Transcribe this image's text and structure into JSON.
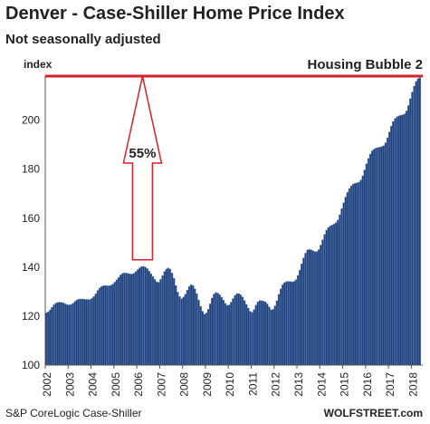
{
  "title": "Denver  - Case-Shiller Home Price Index",
  "subtitle": "Not seasonally adjusted",
  "source": "S&P CoreLogic Case-Shiller",
  "brand": "WOLFSTREET.com",
  "colors": {
    "bar": "#1f3f7a",
    "bar_edge": "#5d7fb8",
    "bubble_line": "#d3222a",
    "annotation": "#d3222a"
  },
  "chart_data": {
    "type": "bar",
    "ylabel": "index",
    "ylim": [
      100,
      218
    ],
    "yticks": [
      100,
      120,
      140,
      160,
      180,
      200
    ],
    "grid": false,
    "x_start": "2002-01",
    "year_labels": [
      "2002",
      "2003",
      "2004",
      "2005",
      "2006",
      "2007",
      "2008",
      "2009",
      "2010",
      "2011",
      "2012",
      "2013",
      "2014",
      "2015",
      "2016",
      "2017",
      "2018"
    ],
    "annotations": {
      "reference_line": {
        "value": 218,
        "label": "Housing Bubble 2"
      },
      "arrow": {
        "from": 143,
        "to": 218,
        "label": "55%"
      }
    },
    "values": [
      121.4,
      121.7,
      122.5,
      123.6,
      124.6,
      125.3,
      125.6,
      125.7,
      125.6,
      125.4,
      125.0,
      124.7,
      124.6,
      124.7,
      125.2,
      126.0,
      126.6,
      126.9,
      127.0,
      127.0,
      126.9,
      126.8,
      126.8,
      126.8,
      127.3,
      128.0,
      129.1,
      130.5,
      131.5,
      132.1,
      132.4,
      132.5,
      132.4,
      132.4,
      132.6,
      133.1,
      133.9,
      134.9,
      135.8,
      136.8,
      137.4,
      137.6,
      137.6,
      137.4,
      137.2,
      137.2,
      137.5,
      138.2,
      139.0,
      139.7,
      140.2,
      140.3,
      140.0,
      139.4,
      138.4,
      137.3,
      136.2,
      135.0,
      134.0,
      133.8,
      135.0,
      136.5,
      138.2,
      139.2,
      139.7,
      139.2,
      137.6,
      135.5,
      132.5,
      129.8,
      128.0,
      127.1,
      127.8,
      128.9,
      130.6,
      132.1,
      132.8,
      132.5,
      131.2,
      129.2,
      126.6,
      124.0,
      122.0,
      120.8,
      121.3,
      122.8,
      125.0,
      127.4,
      129.0,
      129.7,
      129.4,
      128.7,
      127.7,
      126.5,
      125.2,
      124.4,
      124.6,
      125.7,
      127.2,
      128.5,
      129.2,
      129.2,
      128.7,
      127.8,
      126.4,
      124.8,
      123.3,
      122.0,
      121.6,
      122.7,
      124.5,
      125.8,
      126.4,
      126.3,
      126.1,
      125.8,
      125.0,
      123.8,
      122.6,
      122.8,
      124.2,
      126.3,
      128.9,
      131.1,
      132.8,
      133.7,
      134.1,
      134.2,
      134.1,
      134.0,
      134.2,
      134.9,
      136.6,
      138.8,
      141.4,
      143.8,
      145.7,
      147.0,
      147.3,
      147.0,
      146.7,
      146.3,
      146.4,
      147.2,
      149.0,
      151.2,
      153.4,
      155.1,
      156.2,
      156.8,
      157.2,
      157.6,
      158.2,
      159.2,
      161.4,
      163.9,
      166.3,
      168.6,
      170.5,
      172.1,
      173.2,
      173.9,
      174.2,
      174.4,
      174.7,
      175.6,
      177.3,
      179.7,
      182.2,
      184.4,
      186.2,
      187.5,
      188.2,
      188.6,
      188.8,
      189.0,
      189.2,
      189.6,
      190.8,
      192.8,
      195.2,
      197.6,
      199.5,
      200.7,
      201.4,
      201.8,
      202.0,
      202.2,
      202.6,
      203.8,
      206.0,
      208.8,
      211.5,
      213.9,
      215.8,
      216.9,
      217.3
    ]
  }
}
